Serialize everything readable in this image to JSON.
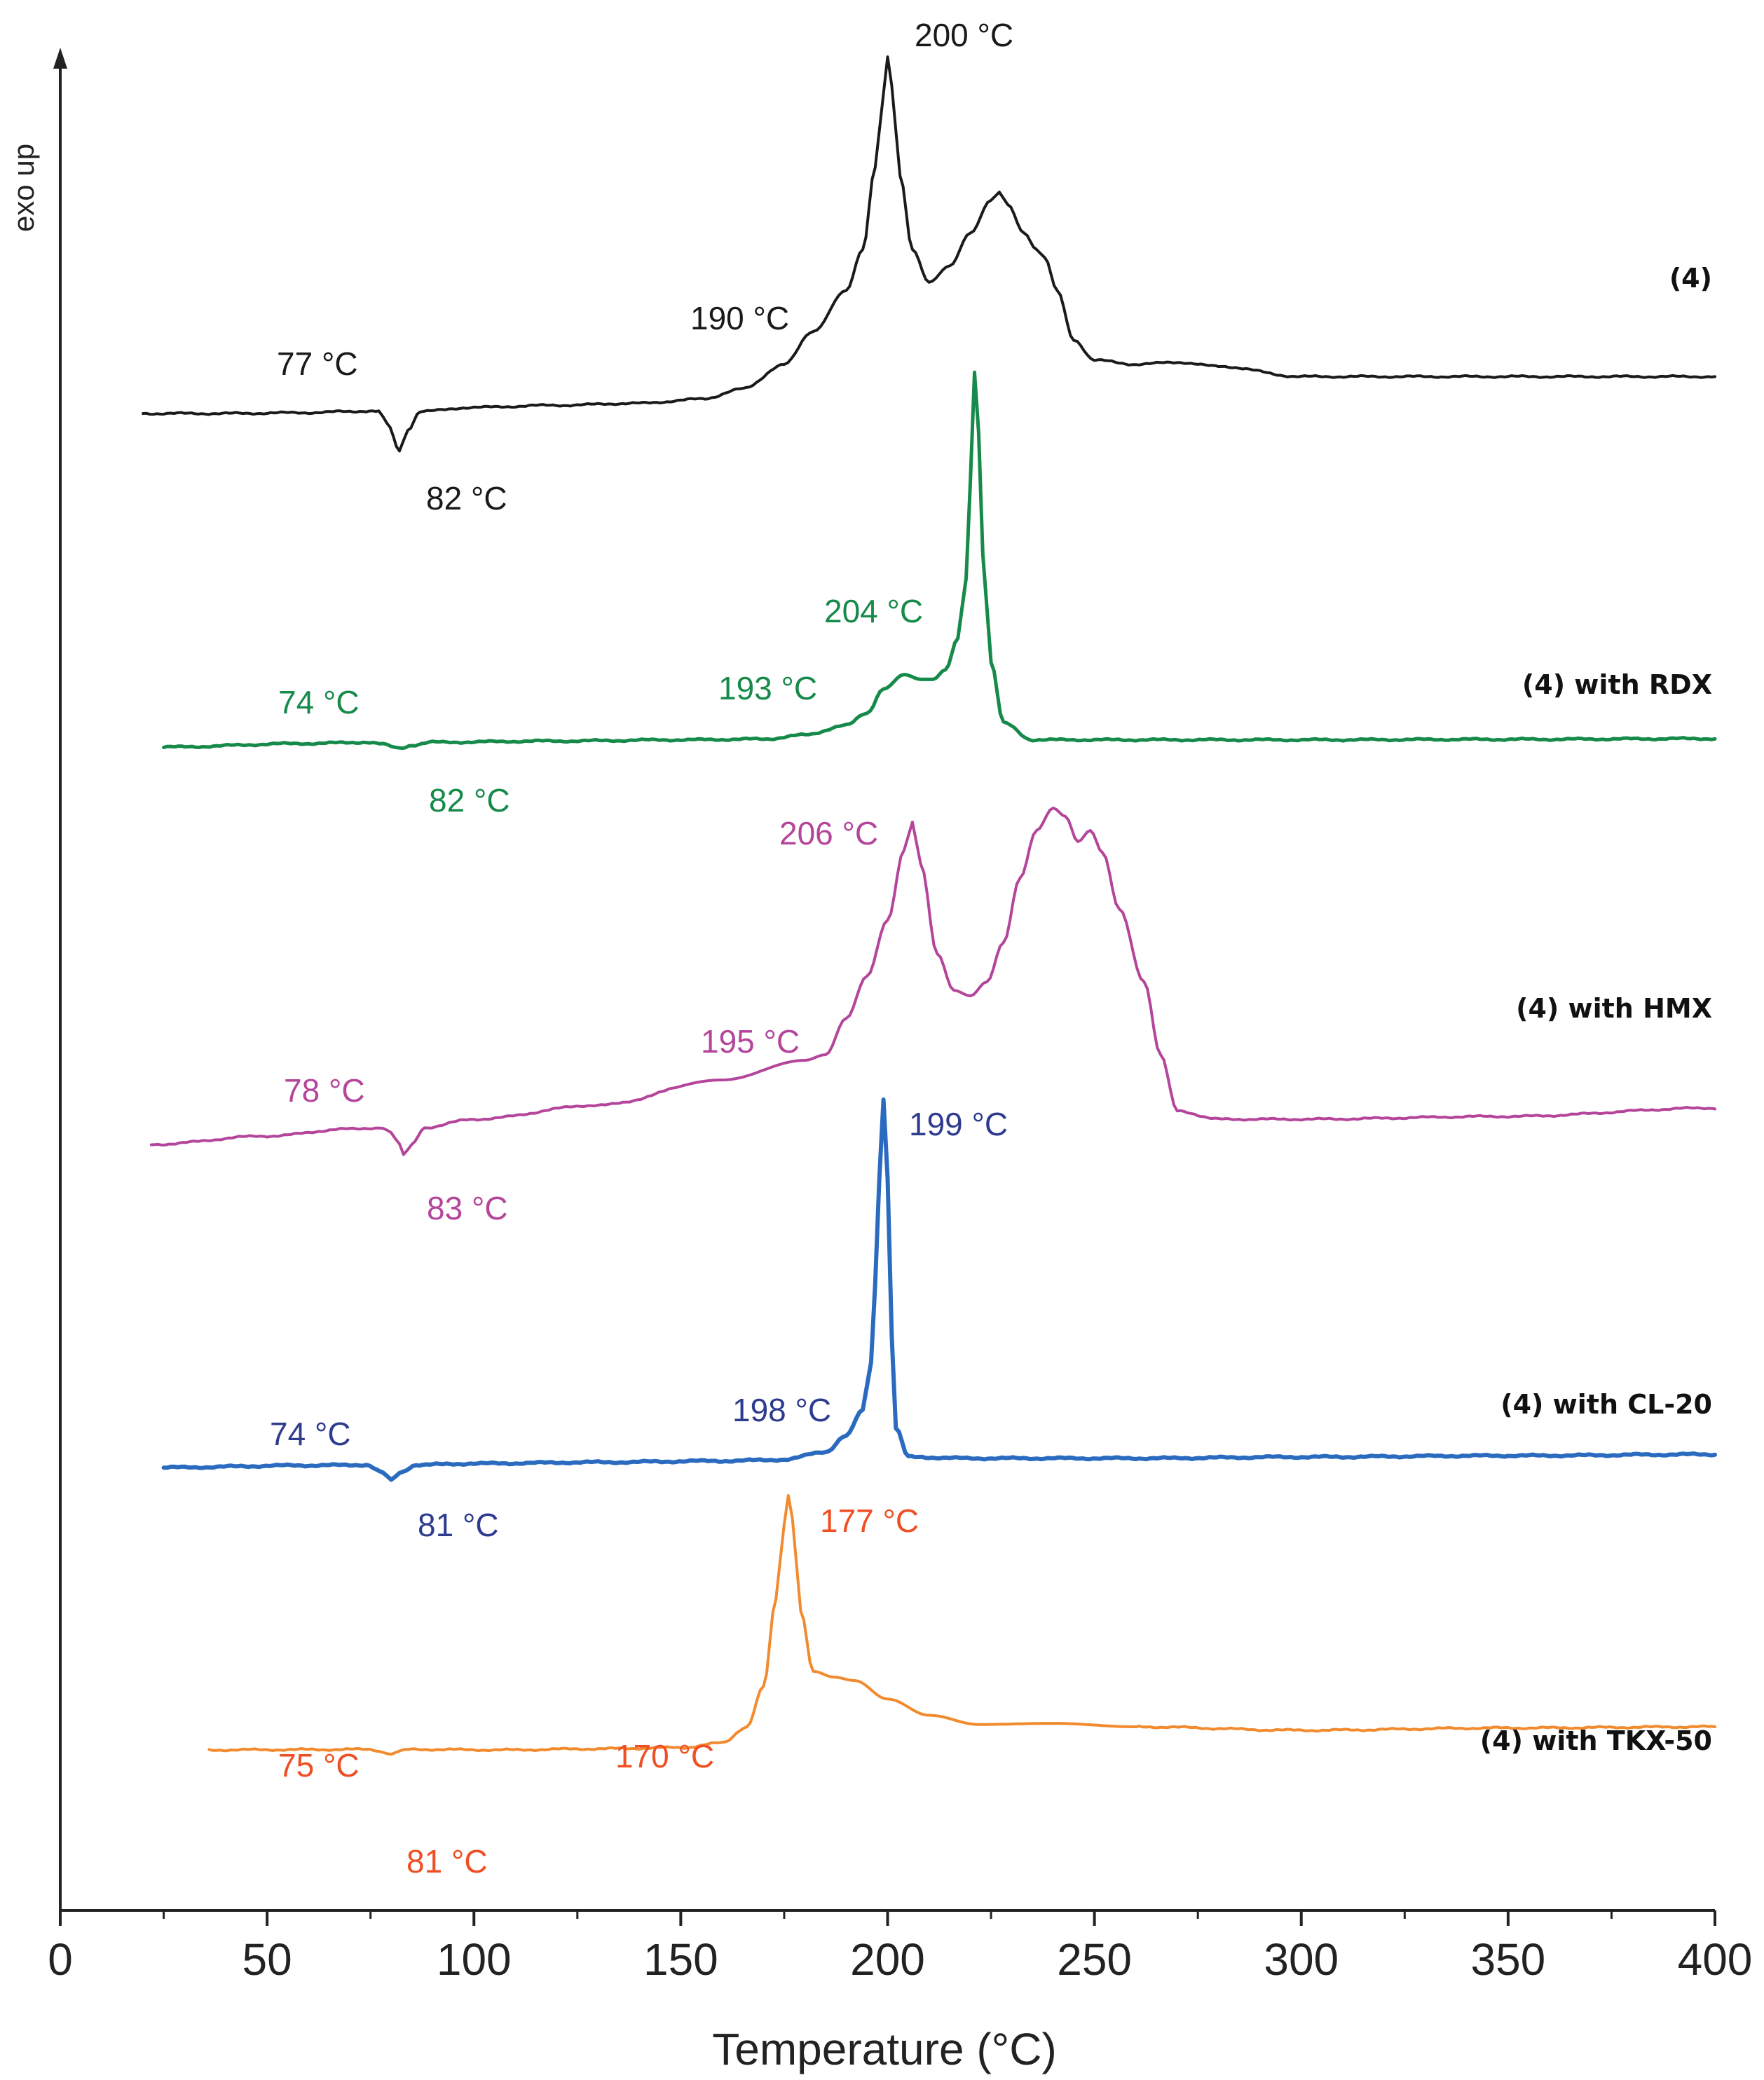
{
  "chart_data": {
    "type": "line",
    "title": "",
    "xlabel": "Temperature (°C)",
    "ylabel": "exo up",
    "xlim": [
      0,
      400
    ],
    "x_ticks": [
      0,
      50,
      100,
      150,
      200,
      250,
      300,
      350,
      400
    ],
    "x_tick_labels": [
      "0",
      "50",
      "100",
      "150",
      "200",
      "250",
      "300",
      "350",
      "400"
    ],
    "grid": false,
    "legend": "inline labels at right of each curve",
    "units_y": "arbitrary heat flow (stacked traces, exo up)",
    "series": [
      {
        "name": "(4)",
        "color": "#1a1a1a",
        "points": [
          [
            20,
            0
          ],
          [
            40,
            0
          ],
          [
            60,
            0.2
          ],
          [
            70,
            0.5
          ],
          [
            74,
            0.6
          ],
          [
            77,
            0.5
          ],
          [
            79,
            -2.5
          ],
          [
            82,
            -9
          ],
          [
            84,
            -4
          ],
          [
            87,
            0.5
          ],
          [
            100,
            1.5
          ],
          [
            120,
            2
          ],
          [
            140,
            2.5
          ],
          [
            155,
            3.5
          ],
          [
            165,
            6
          ],
          [
            175,
            12
          ],
          [
            182,
            20
          ],
          [
            190,
            30
          ],
          [
            194,
            40
          ],
          [
            197,
            60
          ],
          [
            199,
            78
          ],
          [
            200,
            87
          ],
          [
            201,
            80
          ],
          [
            203,
            58
          ],
          [
            206,
            40
          ],
          [
            210,
            32
          ],
          [
            215,
            36
          ],
          [
            220,
            44
          ],
          [
            225,
            52
          ],
          [
            227,
            54
          ],
          [
            229,
            51
          ],
          [
            233,
            44
          ],
          [
            236,
            40
          ],
          [
            238,
            38
          ],
          [
            241,
            30
          ],
          [
            245,
            18
          ],
          [
            250,
            13
          ],
          [
            260,
            12
          ],
          [
            270,
            12.5
          ],
          [
            280,
            11.5
          ],
          [
            300,
            9
          ],
          [
            350,
            9
          ],
          [
            400,
            9
          ]
        ]
      },
      {
        "name": "(4) with RDX",
        "color": "#168a4a",
        "points": [
          [
            25,
            0
          ],
          [
            60,
            1.5
          ],
          [
            74,
            2
          ],
          [
            78,
            1.2
          ],
          [
            80,
            0.2
          ],
          [
            82,
            -0.5
          ],
          [
            85,
            0.8
          ],
          [
            90,
            2
          ],
          [
            120,
            2.5
          ],
          [
            150,
            3
          ],
          [
            170,
            3.3
          ],
          [
            180,
            5
          ],
          [
            190,
            9
          ],
          [
            195,
            14
          ],
          [
            199,
            24
          ],
          [
            204,
            30
          ],
          [
            208,
            28
          ],
          [
            211,
            28
          ],
          [
            214,
            32
          ],
          [
            217,
            45
          ],
          [
            219,
            70
          ],
          [
            220,
            110
          ],
          [
            221,
            155
          ],
          [
            222,
            130
          ],
          [
            223,
            80
          ],
          [
            225,
            35
          ],
          [
            228,
            10
          ],
          [
            235,
            3
          ],
          [
            260,
            3
          ],
          [
            300,
            3
          ],
          [
            350,
            3.2
          ],
          [
            400,
            3.5
          ]
        ]
      },
      {
        "name": "(4) with HMX",
        "color": "#b4459a",
        "points": [
          [
            22,
            0
          ],
          [
            50,
            3
          ],
          [
            70,
            5.5
          ],
          [
            78,
            6
          ],
          [
            80,
            4
          ],
          [
            82,
            0
          ],
          [
            83,
            -4
          ],
          [
            85,
            0
          ],
          [
            88,
            6
          ],
          [
            100,
            9
          ],
          [
            130,
            14
          ],
          [
            160,
            23
          ],
          [
            180,
            30
          ],
          [
            185,
            32
          ],
          [
            190,
            45
          ],
          [
            195,
            60
          ],
          [
            200,
            80
          ],
          [
            204,
            105
          ],
          [
            206,
            115
          ],
          [
            208,
            100
          ],
          [
            212,
            68
          ],
          [
            216,
            55
          ],
          [
            220,
            53
          ],
          [
            224,
            58
          ],
          [
            228,
            72
          ],
          [
            232,
            95
          ],
          [
            236,
            112
          ],
          [
            240,
            120
          ],
          [
            243,
            117
          ],
          [
            246,
            108
          ],
          [
            249,
            112
          ],
          [
            252,
            104
          ],
          [
            256,
            84
          ],
          [
            262,
            58
          ],
          [
            266,
            32
          ],
          [
            270,
            12
          ],
          [
            280,
            9
          ],
          [
            300,
            9
          ],
          [
            350,
            10
          ],
          [
            400,
            13
          ]
        ]
      },
      {
        "name": "(4) with CL-20",
        "color": "#2a6bbf",
        "points": [
          [
            25,
            0
          ],
          [
            60,
            0.8
          ],
          [
            74,
            1
          ],
          [
            78,
            -2
          ],
          [
            80,
            -5
          ],
          [
            82,
            -2
          ],
          [
            86,
            1
          ],
          [
            100,
            1.5
          ],
          [
            130,
            2
          ],
          [
            160,
            2.5
          ],
          [
            175,
            3
          ],
          [
            185,
            6
          ],
          [
            190,
            12
          ],
          [
            194,
            22
          ],
          [
            196,
            40
          ],
          [
            197,
            70
          ],
          [
            198,
            110
          ],
          [
            199,
            140
          ],
          [
            200,
            110
          ],
          [
            201,
            50
          ],
          [
            202,
            15
          ],
          [
            205,
            4
          ],
          [
            220,
            3.5
          ],
          [
            260,
            3.5
          ],
          [
            300,
            4
          ],
          [
            350,
            4.5
          ],
          [
            400,
            5
          ]
        ]
      },
      {
        "name": "(4) with TKX-50",
        "color": "#f28a2e",
        "points": [
          [
            36,
            0
          ],
          [
            60,
            0.3
          ],
          [
            75,
            0.5
          ],
          [
            78,
            -1.5
          ],
          [
            80,
            -4
          ],
          [
            82,
            -1
          ],
          [
            85,
            0.5
          ],
          [
            107,
            0
          ],
          [
            130,
            1
          ],
          [
            150,
            2
          ],
          [
            160,
            6
          ],
          [
            166,
            20
          ],
          [
            170,
            55
          ],
          [
            173,
            130
          ],
          [
            175,
            195
          ],
          [
            176,
            220
          ],
          [
            177,
            200
          ],
          [
            179,
            120
          ],
          [
            182,
            68
          ],
          [
            187,
            63
          ],
          [
            192,
            60
          ],
          [
            200,
            44
          ],
          [
            210,
            30
          ],
          [
            222,
            22
          ],
          [
            240,
            23
          ],
          [
            260,
            20
          ],
          [
            300,
            17
          ],
          [
            350,
            19
          ],
          [
            400,
            20
          ]
        ]
      }
    ],
    "annotations": [
      {
        "text": "77 °C",
        "series": "(4)",
        "color": "#1a1a1a"
      },
      {
        "text": "82 °C",
        "series": "(4)",
        "color": "#1a1a1a"
      },
      {
        "text": "190 °C",
        "series": "(4)",
        "color": "#1a1a1a"
      },
      {
        "text": "200 °C",
        "series": "(4)",
        "color": "#1a1a1a"
      },
      {
        "text": "74 °C",
        "series": "(4) with RDX",
        "color": "#168a4a"
      },
      {
        "text": "82 °C",
        "series": "(4) with RDX",
        "color": "#168a4a"
      },
      {
        "text": "193 °C",
        "series": "(4) with RDX",
        "color": "#168a4a"
      },
      {
        "text": "204 °C",
        "series": "(4) with RDX",
        "color": "#168a4a"
      },
      {
        "text": "78 °C",
        "series": "(4) with HMX",
        "color": "#b4459a"
      },
      {
        "text": "83 °C",
        "series": "(4) with HMX",
        "color": "#b4459a"
      },
      {
        "text": "195 °C",
        "series": "(4) with HMX",
        "color": "#b4459a"
      },
      {
        "text": "206 °C",
        "series": "(4) with HMX",
        "color": "#b4459a"
      },
      {
        "text": "74 °C",
        "series": "(4) with CL-20",
        "color": "#2e3b8f"
      },
      {
        "text": "81 °C",
        "series": "(4) with CL-20",
        "color": "#2e3b8f"
      },
      {
        "text": "198 °C",
        "series": "(4) with CL-20",
        "color": "#2e3b8f"
      },
      {
        "text": "199 °C",
        "series": "(4) with CL-20",
        "color": "#2e3b8f"
      },
      {
        "text": "75 °C",
        "series": "(4) with TKX-50",
        "color": "#f04e23"
      },
      {
        "text": "81 °C",
        "series": "(4) with TKX-50",
        "color": "#f04e23"
      },
      {
        "text": "170 °C",
        "series": "(4) with TKX-50",
        "color": "#f04e23"
      },
      {
        "text": "177 °C",
        "series": "(4) with TKX-50",
        "color": "#f04e23"
      }
    ]
  }
}
